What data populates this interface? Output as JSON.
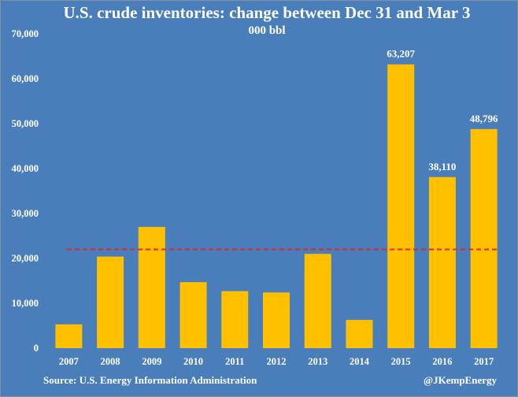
{
  "chart_data": {
    "type": "bar",
    "title": "U.S. crude inventories: change between Dec 31 and Mar 3",
    "subtitle": "000 bbl",
    "categories": [
      "2007",
      "2008",
      "2009",
      "2010",
      "2011",
      "2012",
      "2013",
      "2014",
      "2015",
      "2016",
      "2017"
    ],
    "values": [
      5300,
      20400,
      27000,
      14700,
      12700,
      12400,
      21000,
      6300,
      63207,
      38110,
      48796
    ],
    "data_labels": {
      "2015": "63,207",
      "2016": "38,110",
      "2017": "48,796"
    },
    "reference_line": {
      "value": 22000,
      "style": "dashed",
      "color": "#e0282d"
    },
    "ylim": [
      0,
      70000
    ],
    "yticks": [
      "0",
      "10,000",
      "20,000",
      "30,000",
      "40,000",
      "50,000",
      "60,000",
      "70,000"
    ],
    "ytick_values": [
      0,
      10000,
      20000,
      30000,
      40000,
      50000,
      60000,
      70000
    ],
    "xlabel": "",
    "ylabel": "",
    "grid": false,
    "bar_color": "#ffc000",
    "background_color": "#4a7ebb"
  },
  "footer": {
    "source": "Source: U.S. Energy Information Administration",
    "credit": "@JKempEnergy"
  }
}
